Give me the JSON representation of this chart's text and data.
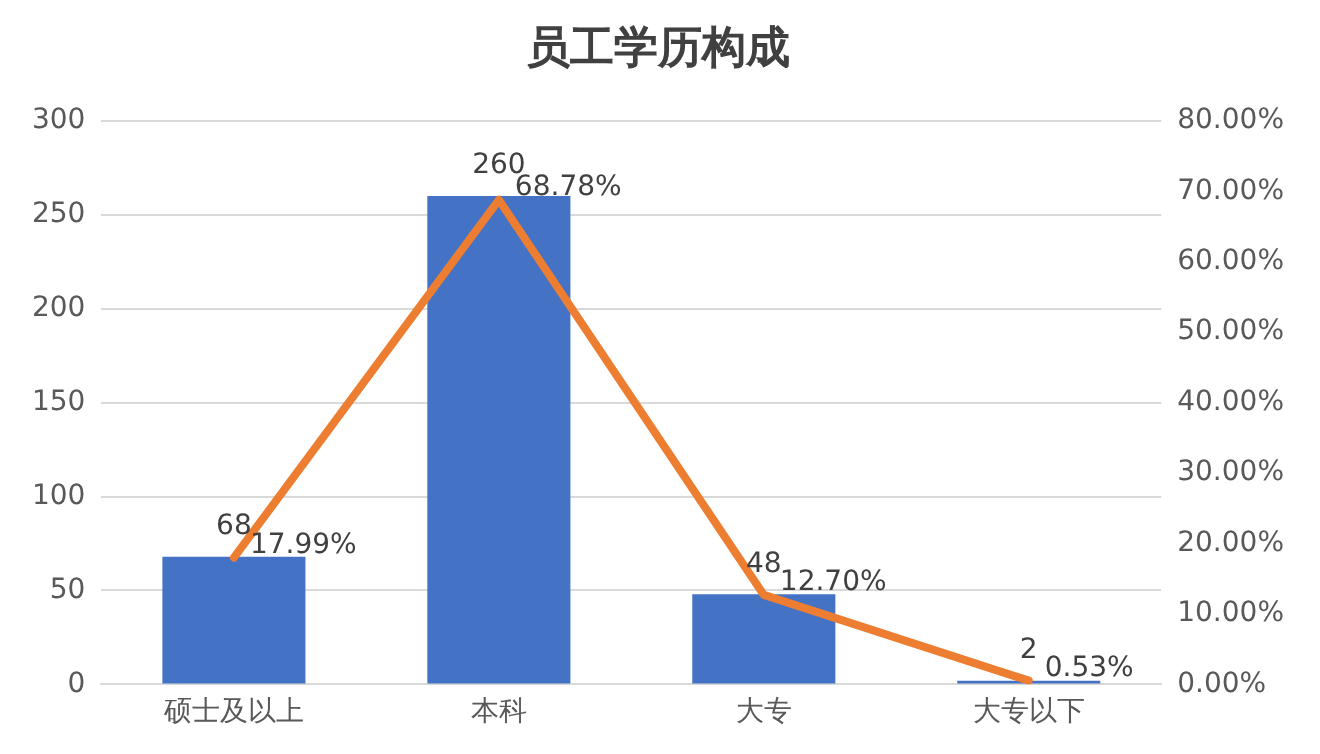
{
  "chart_data": {
    "type": "bar",
    "title": "员工学历构成",
    "categories": [
      "硕士及以上",
      "本科",
      "大专",
      "大专以下"
    ],
    "series": [
      {
        "color": "#4472c4",
        "values": [
          68,
          260,
          48,
          2
        ],
        "value_labels": [
          "68",
          "260",
          "48",
          "2"
        ]
      },
      {
        "type": "line",
        "axis": "y2",
        "color": "#ed7d31",
        "values": [
          17.99,
          68.78,
          12.7,
          0.53
        ],
        "value_labels": [
          "17.99%",
          "68.78%",
          "12.70%",
          "0.53%"
        ]
      }
    ],
    "ylim": [
      0,
      300
    ],
    "yticks": [
      0,
      50,
      100,
      150,
      200,
      250,
      300
    ],
    "y2lim": [
      0,
      80
    ],
    "y2ticks": [
      {
        "value": 0,
        "label": "0.00%"
      },
      {
        "value": 10,
        "label": "10.00%"
      },
      {
        "value": 20,
        "label": "20.00%"
      },
      {
        "value": 30,
        "label": "30.00%"
      },
      {
        "value": 40,
        "label": "40.00%"
      },
      {
        "value": 50,
        "label": "50.00%"
      },
      {
        "value": 60,
        "label": "60.00%"
      },
      {
        "value": 70,
        "label": "70.00%"
      },
      {
        "value": 80,
        "label": "80.00%"
      }
    ],
    "grid": "y",
    "legend": false,
    "marker": "none",
    "line_style": "solid"
  }
}
